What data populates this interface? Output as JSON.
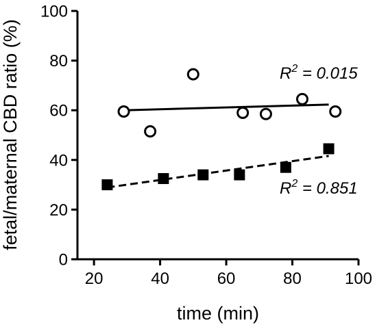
{
  "chart_data": {
    "type": "scatter",
    "title": "",
    "xlabel": "time (min)",
    "ylabel": "fetal/maternal CBD ratio (%)",
    "xlim": [
      15,
      100
    ],
    "ylim": [
      0,
      100
    ],
    "xticks": [
      "20",
      "40",
      "60",
      "80",
      "100"
    ],
    "yticks": [
      "0",
      "20",
      "40",
      "60",
      "80",
      "100"
    ],
    "grid": false,
    "legend": "none",
    "series": [
      {
        "marker": "open-circle",
        "x": [
          29,
          37,
          50,
          65,
          72,
          83,
          93
        ],
        "y": [
          59.5,
          51.5,
          74.5,
          59,
          58.5,
          64.5,
          59.5
        ],
        "fit": {
          "x": [
            29,
            91
          ],
          "y": [
            60,
            62.3
          ],
          "style": "solid",
          "color": "#000000"
        },
        "annotation": {
          "prefix": "R",
          "sup": "2",
          "suffix": " = 0.015"
        }
      },
      {
        "marker": "filled-square",
        "x": [
          24,
          41,
          53,
          64,
          78,
          91
        ],
        "y": [
          30,
          32.5,
          34,
          34,
          37,
          44.5
        ],
        "fit": {
          "x": [
            24,
            91
          ],
          "y": [
            28.9,
            41.6
          ],
          "style": "dashed",
          "color": "#000000"
        },
        "annotation": {
          "prefix": "R",
          "sup": "2",
          "suffix": " = 0.851"
        }
      }
    ]
  }
}
